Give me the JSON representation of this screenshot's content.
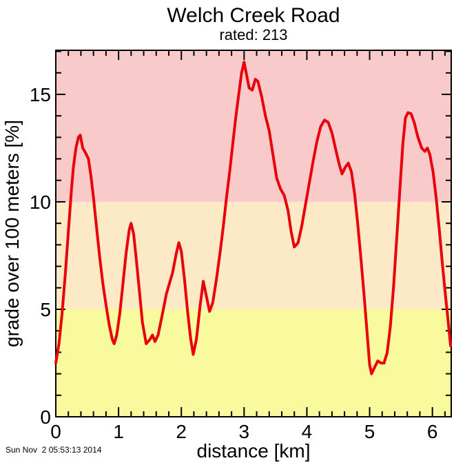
{
  "title": "Welch Creek Road",
  "subtitle": "rated: 213",
  "timestamp": "Sun Nov  2 05:53:13 2014",
  "colors": {
    "band_low": "#f8fa9d",
    "band_mid": "#fce9c5",
    "band_high": "#f9caca",
    "line": "#e8000b",
    "frame": "#000000",
    "background": "#ffffff"
  },
  "chart_data": {
    "type": "line",
    "title": "Welch Creek Road",
    "subtitle": "rated: 213",
    "xlabel": "distance [km]",
    "ylabel": "grade over 100 meters [%]",
    "xlim": [
      0,
      6.3
    ],
    "ylim": [
      0,
      17.05
    ],
    "x_major_ticks": [
      0,
      1,
      2,
      3,
      4,
      5,
      6
    ],
    "x_minor_step": 0.2,
    "y_major_ticks": [
      0,
      5,
      10,
      15
    ],
    "y_minor_step": 1,
    "grid": false,
    "legend": "none",
    "ticks_mirrored": true,
    "bands": [
      {
        "y_from": 0,
        "y_to": 5,
        "color": "#f8fa9d"
      },
      {
        "y_from": 5,
        "y_to": 10,
        "color": "#fce9c5"
      },
      {
        "y_from": 10,
        "y_to": 17.05,
        "color": "#f9caca"
      }
    ],
    "series": [
      {
        "name": "grade",
        "color": "#e8000b",
        "x": [
          0,
          0.05,
          0.1,
          0.15,
          0.2,
          0.25,
          0.28,
          0.32,
          0.36,
          0.39,
          0.43,
          0.47,
          0.52,
          0.56,
          0.6,
          0.65,
          0.7,
          0.75,
          0.8,
          0.85,
          0.9,
          0.93,
          0.97,
          1.02,
          1.07,
          1.12,
          1.17,
          1.2,
          1.24,
          1.28,
          1.33,
          1.38,
          1.44,
          1.5,
          1.54,
          1.58,
          1.63,
          1.7,
          1.76,
          1.8,
          1.86,
          1.92,
          1.96,
          2.0,
          2.05,
          2.1,
          2.15,
          2.19,
          2.24,
          2.3,
          2.35,
          2.4,
          2.45,
          2.5,
          2.56,
          2.62,
          2.67,
          2.72,
          2.77,
          2.82,
          2.87,
          2.92,
          2.96,
          3.0,
          3.04,
          3.08,
          3.13,
          3.18,
          3.22,
          3.28,
          3.34,
          3.4,
          3.46,
          3.52,
          3.58,
          3.64,
          3.7,
          3.75,
          3.8,
          3.86,
          3.92,
          3.98,
          4.04,
          4.1,
          4.16,
          4.22,
          4.28,
          4.34,
          4.4,
          4.47,
          4.52,
          4.56,
          4.61,
          4.66,
          4.71,
          4.76,
          4.81,
          4.86,
          4.91,
          4.96,
          5.0,
          5.03,
          5.08,
          5.13,
          5.18,
          5.23,
          5.28,
          5.33,
          5.38,
          5.43,
          5.48,
          5.53,
          5.57,
          5.61,
          5.66,
          5.71,
          5.77,
          5.83,
          5.88,
          5.92,
          5.96,
          6.01,
          6.06,
          6.11,
          6.16,
          6.21,
          6.25,
          6.29
        ],
        "y": [
          2.5,
          3.4,
          4.8,
          6.6,
          8.6,
          10.6,
          11.6,
          12.5,
          13.0,
          13.1,
          12.5,
          12.3,
          12.0,
          11.2,
          10.2,
          8.8,
          7.4,
          6.2,
          5.2,
          4.3,
          3.6,
          3.4,
          3.8,
          4.8,
          6.2,
          7.6,
          8.7,
          9.0,
          8.5,
          7.4,
          5.9,
          4.4,
          3.4,
          3.6,
          3.8,
          3.5,
          3.8,
          4.8,
          5.7,
          6.1,
          6.7,
          7.6,
          8.1,
          7.7,
          6.4,
          4.9,
          3.6,
          2.9,
          3.6,
          5.2,
          6.3,
          5.6,
          4.9,
          5.3,
          6.4,
          7.7,
          8.9,
          10.2,
          11.4,
          12.7,
          14.0,
          15.1,
          16.0,
          16.5,
          15.9,
          15.3,
          15.2,
          15.7,
          15.6,
          14.9,
          14.0,
          13.3,
          12.2,
          11.1,
          10.6,
          10.3,
          9.6,
          8.6,
          7.9,
          8.1,
          8.9,
          9.9,
          10.9,
          11.9,
          12.8,
          13.5,
          13.8,
          13.7,
          13.2,
          12.3,
          11.7,
          11.3,
          11.6,
          11.8,
          11.4,
          10.4,
          9.0,
          7.4,
          5.7,
          3.9,
          2.4,
          2.0,
          2.3,
          2.6,
          2.5,
          2.5,
          3.0,
          4.2,
          6.0,
          8.2,
          10.5,
          12.7,
          13.9,
          14.15,
          14.1,
          13.7,
          13.0,
          12.5,
          12.35,
          12.5,
          12.2,
          11.4,
          10.2,
          8.7,
          7.1,
          5.6,
          4.5,
          3.3
        ]
      }
    ]
  }
}
